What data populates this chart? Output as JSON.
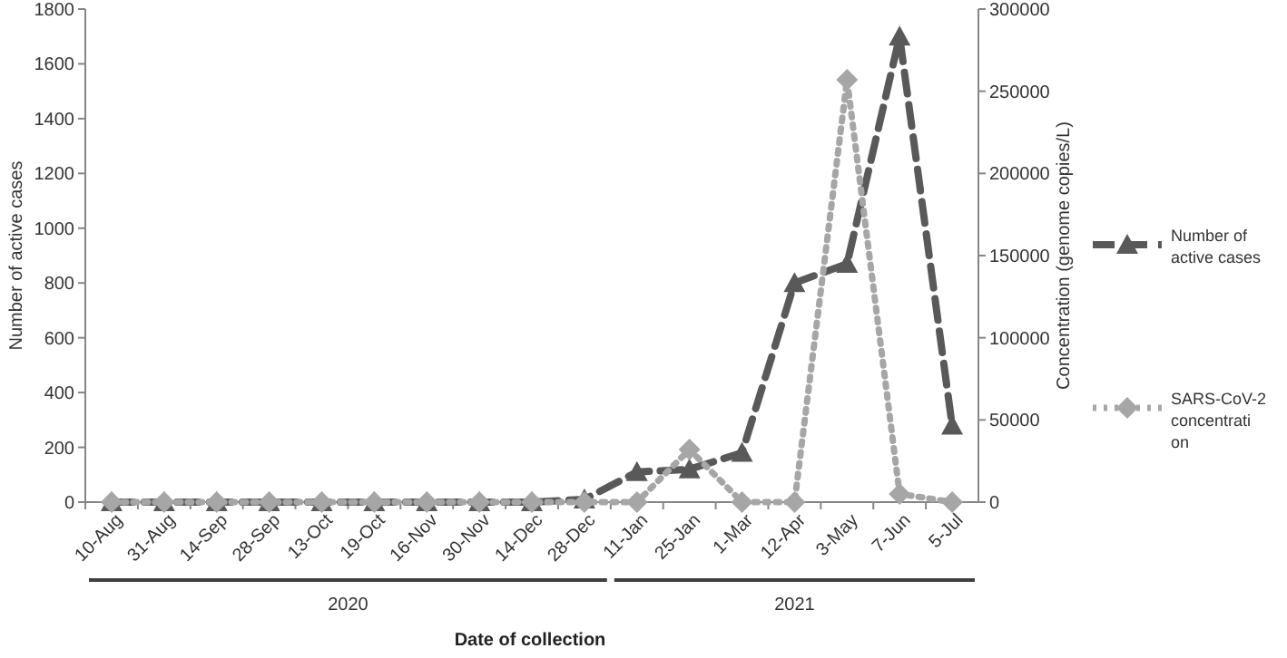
{
  "chart_data": {
    "type": "line",
    "xlabel": "Date of collection",
    "ylabel": "Number of active cases",
    "y2label": "Concentration (genome copies/L)",
    "categories": [
      "10-Aug",
      "31-Aug",
      "14-Sep",
      "28-Sep",
      "13-Oct",
      "19-Oct",
      "16-Nov",
      "30-Nov",
      "14-Dec",
      "28-Dec",
      "11-Jan",
      "25-Jan",
      "1-Mar",
      "12-Apr",
      "3-May",
      "7-Jun",
      "5-Jul"
    ],
    "series": [
      {
        "name": "Number of active cases",
        "color": "#595959",
        "marker": "triangle",
        "line_style": "dashed",
        "values": [
          0,
          0,
          0,
          0,
          0,
          0,
          0,
          0,
          0,
          10,
          110,
          120,
          180,
          800,
          870,
          1700,
          280
        ]
      },
      {
        "name": "SARS-CoV-2 concentration",
        "color": "#a6a6a6",
        "marker": "diamond",
        "line_style": "dotted",
        "axis": "y2",
        "values": [
          0,
          0,
          0,
          0,
          0,
          0,
          0,
          0,
          0,
          0,
          0,
          32000,
          0,
          0,
          257000,
          5000,
          0
        ]
      }
    ],
    "ylim": [
      0,
      1800
    ],
    "yticks": [
      0,
      200,
      400,
      600,
      800,
      1000,
      1200,
      1400,
      1600,
      1800
    ],
    "y2lim": [
      0,
      300000
    ],
    "y2ticks": [
      0,
      50000,
      100000,
      150000,
      200000,
      250000,
      300000
    ],
    "annotations": [
      "2020",
      "2021"
    ],
    "grid": false,
    "legend": "right"
  }
}
